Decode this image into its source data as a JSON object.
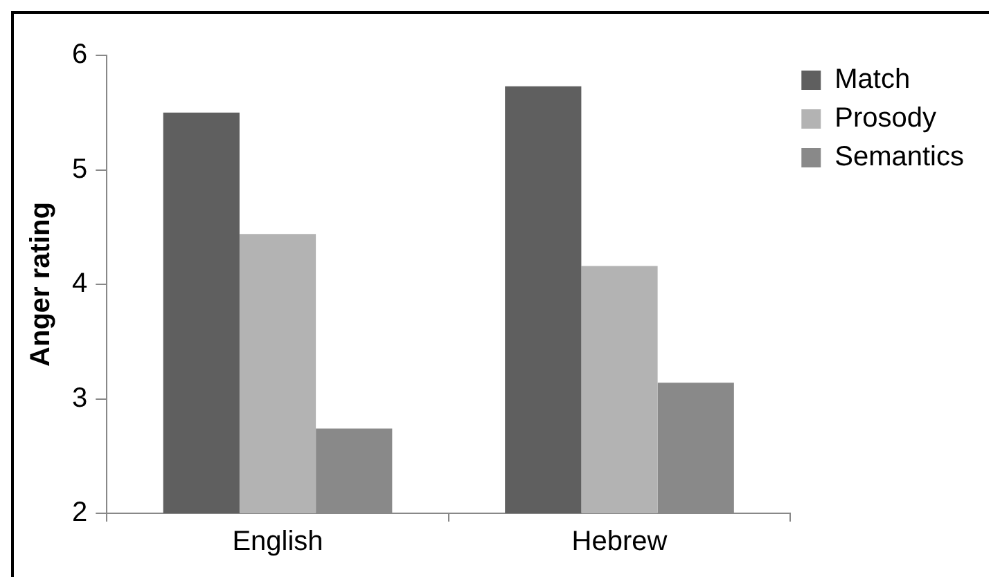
{
  "chart_data": {
    "type": "bar",
    "ylabel": "Anger rating",
    "categories": [
      "English",
      "Hebrew"
    ],
    "series": [
      {
        "name": "Match",
        "color": "#5f5f5f",
        "values": [
          5.5,
          5.73
        ]
      },
      {
        "name": "Prosody",
        "color": "#b3b3b3",
        "values": [
          4.44,
          4.16
        ]
      },
      {
        "name": "Semantics",
        "color": "#898989",
        "values": [
          2.74,
          3.14
        ]
      }
    ],
    "ylim": [
      2,
      6
    ],
    "yticks": [
      2,
      3,
      4,
      5,
      6
    ],
    "grid": false,
    "legend": "right"
  }
}
